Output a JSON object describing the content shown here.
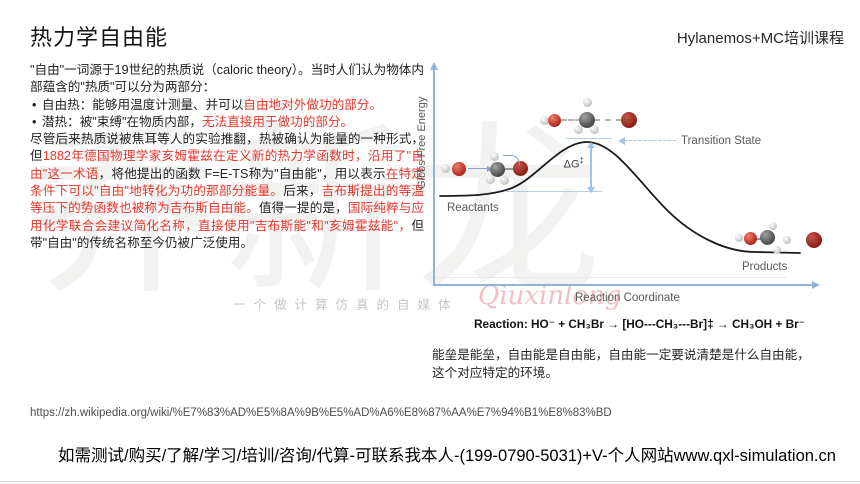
{
  "slide": {
    "title": "热力学自由能",
    "course": "Hylanemos+MC培训课程",
    "colors": {
      "red_text": "#e8362a",
      "axis_blue": "#8fb3dc",
      "label_gray": "#595959",
      "curve_black": "#1a1a1a"
    },
    "body": {
      "paragraphs": [
        {
          "type": "p",
          "segments": [
            {
              "t": "\"自由\"一词源于19世纪的热质说（caloric theory）。当时人们认为物体内部蕴含的\"热质\"可以分为两部分：",
              "c": "black"
            }
          ]
        },
        {
          "type": "li",
          "segments": [
            {
              "t": "自由热：能够用温度计测量、并可以",
              "c": "black"
            },
            {
              "t": "自由地对外做功的部分。",
              "c": "red"
            }
          ]
        },
        {
          "type": "li",
          "segments": [
            {
              "t": "潜热：被\"束缚\"在物质内部，",
              "c": "black"
            },
            {
              "t": "无法直接用于做功的部分。",
              "c": "red"
            }
          ]
        },
        {
          "type": "p",
          "segments": [
            {
              "t": "尽管后来热质说被焦耳等人的实验推翻，热被确认为能量的一种形式，但",
              "c": "black"
            },
            {
              "t": "1882年德国物理学家亥姆霍兹在定义新的热力学函数时，沿用了\"自由\"这一术语",
              "c": "red"
            },
            {
              "t": "，将他提出的函数 F=E-TS称为\"自由能\"，用以表示",
              "c": "black"
            },
            {
              "t": "在特定条件下可以\"自由\"地转化为功的那部分能量。",
              "c": "red"
            },
            {
              "t": "后来，",
              "c": "black"
            },
            {
              "t": "吉布斯提出的等温等压下的势函数也被称为吉布斯自由能。",
              "c": "red"
            },
            {
              "t": "值得一提的是，",
              "c": "black"
            },
            {
              "t": "国际纯粹与应用化学联合会建议简化名称，直接使用\"吉布斯能\"和\"亥姆霍兹能\"，",
              "c": "red"
            },
            {
              "t": "但带\"自由\"的传统名称至今仍被广泛使用。",
              "c": "black"
            }
          ]
        }
      ]
    },
    "diagram": {
      "y_axis_label": "Gibbs Free Energy",
      "x_axis_label": "Reaction Coordinate",
      "reactants_label": "Reactants",
      "products_label": "Products",
      "transition_state_label": "Transition State",
      "delta_g_label": "ΔG",
      "delta_g_sup": "‡"
    },
    "chart_data": {
      "type": "line",
      "qualitative": true,
      "xlabel": "Reaction Coordinate",
      "ylabel": "Gibbs Free Energy",
      "annotations": [
        "Reactants",
        "Transition State",
        "ΔG‡",
        "Products"
      ],
      "description": "Reaction energy profile: reactant plateau rises over an activation barrier ΔG‡ at the transition state, then falls to a lower product plateau"
    },
    "reaction_line": "Reaction: HO⁻ + CH₃Br → [HO---CH₃---Br]‡ → CH₃OH + Br⁻",
    "note_lines": [
      "能垒是能垒，自由能是自由能，自由能一定要说清楚是什么自由能，",
      "这个对应特定的环境。"
    ],
    "source_url": "https://zh.wikipedia.org/wiki/%E7%83%AD%E5%8A%9B%E5%AD%A6%E8%87%AA%E7%94%B1%E8%83%BD",
    "footer": "如需测试/购买/了解/学习/培训/咨询/代算-可联系我本人-(199-0790-5031)+V-个人网站www.qxl-simulation.cn",
    "watermark": {
      "big_chars": [
        "乔",
        "新",
        "龙"
      ],
      "tagline": "一个做计算仿真的自媒体",
      "script": "Qiuxinlong"
    }
  }
}
